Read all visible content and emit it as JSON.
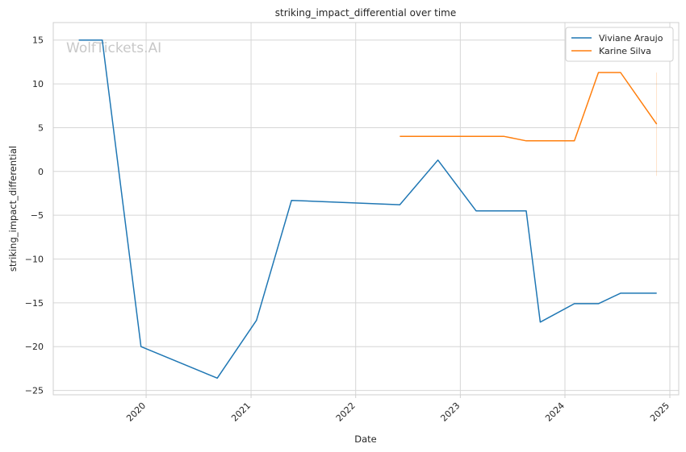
{
  "chart_data": {
    "type": "line",
    "title": "striking_impact_differential over time",
    "xlabel": "Date",
    "ylabel": "striking_impact_differential",
    "watermark": "WolfTickets.AI",
    "x_tick_labels": [
      "2020",
      "2021",
      "2022",
      "2023",
      "2024",
      "2025"
    ],
    "y_ticks": [
      15,
      10,
      5,
      0,
      -5,
      -10,
      -15,
      -20,
      -25
    ],
    "ylim": [
      -25.5,
      17
    ],
    "xlim": [
      "2019-02-11",
      "2025-02-01"
    ],
    "grid": true,
    "legend_position": "top-right",
    "series": [
      {
        "name": "Viviane Araujo",
        "color": "#1f77b4",
        "points": [
          {
            "x": "2019-05-11",
            "y": 15.0
          },
          {
            "x": "2019-08-01",
            "y": 15.0
          },
          {
            "x": "2019-12-14",
            "y": -20.0
          },
          {
            "x": "2020-09-05",
            "y": -23.6
          },
          {
            "x": "2021-01-20",
            "y": -17.0
          },
          {
            "x": "2021-05-22",
            "y": -3.3
          },
          {
            "x": "2022-06-04",
            "y": -3.8
          },
          {
            "x": "2022-10-15",
            "y": 1.3
          },
          {
            "x": "2023-02-25",
            "y": -4.5
          },
          {
            "x": "2023-08-19",
            "y": -4.5
          },
          {
            "x": "2023-10-07",
            "y": -17.2
          },
          {
            "x": "2024-02-03",
            "y": -15.1
          },
          {
            "x": "2024-04-27",
            "y": -15.1
          },
          {
            "x": "2024-07-13",
            "y": -13.9
          },
          {
            "x": "2024-11-16",
            "y": -13.9
          }
        ]
      },
      {
        "name": "Karine Silva",
        "color": "#ff7f0e",
        "points": [
          {
            "x": "2022-06-04",
            "y": 4.0
          },
          {
            "x": "2023-06-03",
            "y": 4.0
          },
          {
            "x": "2023-08-19",
            "y": 3.5
          },
          {
            "x": "2024-02-03",
            "y": 3.5
          },
          {
            "x": "2024-04-27",
            "y": 11.3
          },
          {
            "x": "2024-07-13",
            "y": 11.3
          },
          {
            "x": "2024-11-16",
            "y": 5.4
          }
        ]
      }
    ]
  }
}
